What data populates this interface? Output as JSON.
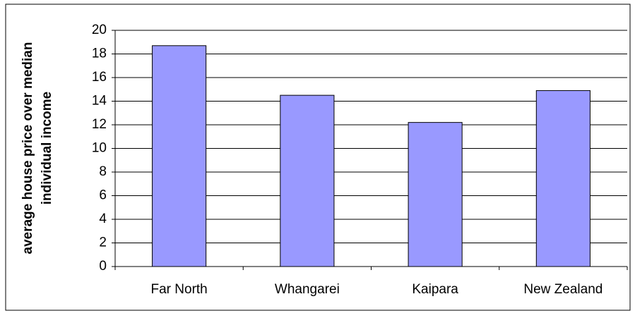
{
  "chart_data": {
    "type": "bar",
    "y_label": [
      "average house price over median",
      "individual income"
    ],
    "categories": [
      "Far North",
      "Whangarei",
      "Kaipara",
      "New Zealand"
    ],
    "values": [
      18.7,
      14.5,
      12.2,
      14.9
    ],
    "color": "#9999ff",
    "ylim": [
      0,
      20
    ],
    "yticks": [
      0,
      2,
      4,
      6,
      8,
      10,
      12,
      14,
      16,
      18,
      20
    ],
    "grid": true
  }
}
